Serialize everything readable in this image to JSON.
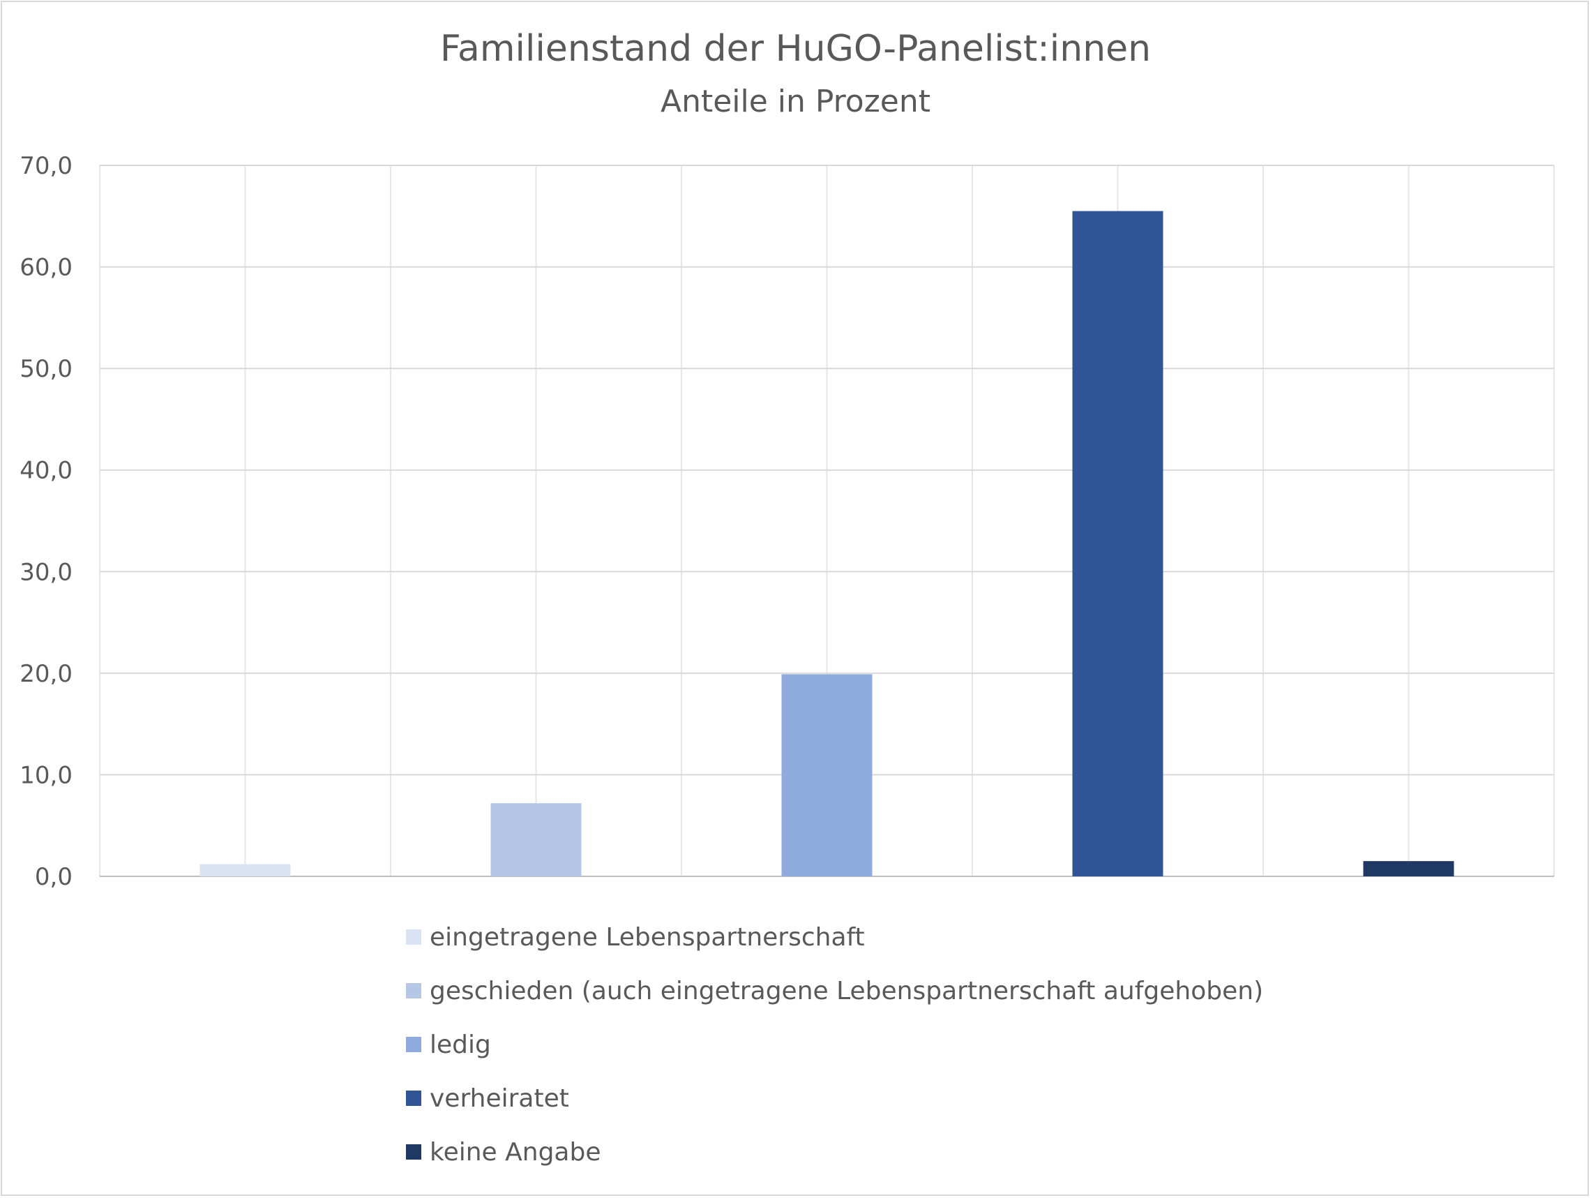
{
  "chart_data": {
    "type": "bar",
    "title": "Familienstand der HuGO-Panelist:innen",
    "subtitle": "Anteile in Prozent",
    "xlabel": "",
    "ylabel": "",
    "ylim": [
      0,
      70
    ],
    "yticks": [
      0,
      10,
      20,
      30,
      40,
      50,
      60,
      70
    ],
    "ytick_labels": [
      "0,0",
      "10,0",
      "20,0",
      "30,0",
      "40,0",
      "50,0",
      "60,0",
      "70,0"
    ],
    "grid": true,
    "legend_position": "bottom",
    "series": [
      {
        "name": "eingetragene Lebenspartnerschaft",
        "value": 1.2,
        "color": "#dae3f3"
      },
      {
        "name": "geschieden (auch eingetragene Lebenspartnerschaft aufgehoben)",
        "value": 7.2,
        "color": "#b4c7e7"
      },
      {
        "name": "ledig",
        "value": 19.9,
        "color": "#8faadc"
      },
      {
        "name": "verheiratet",
        "value": 65.5,
        "color": "#2f5597"
      },
      {
        "name": "keine Angabe",
        "value": 1.5,
        "color": "#203864"
      }
    ]
  }
}
